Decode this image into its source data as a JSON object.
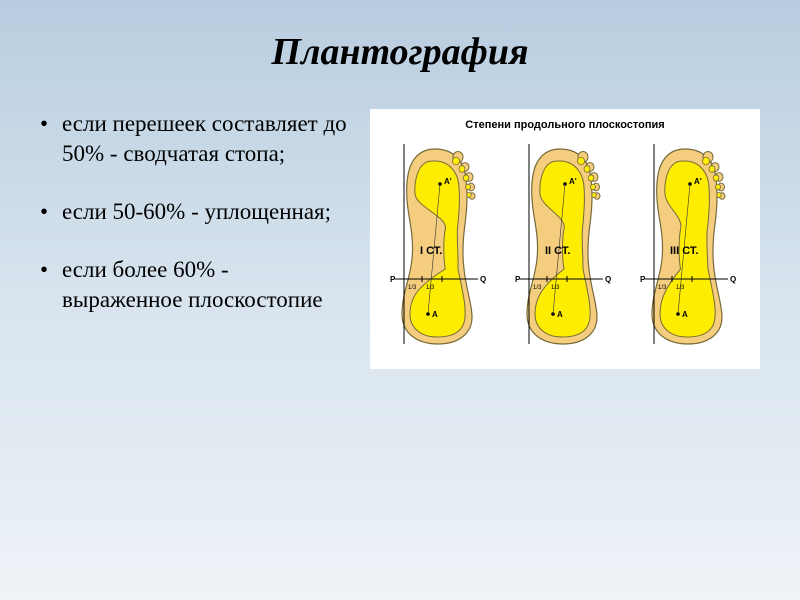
{
  "title": "Плантография",
  "bullets": [
    "если перешеек составляет до 50% - сводчатая стопа;",
    "если 50-60% - уплощенная;",
    "если более 60% - выраженное плоскостопие"
  ],
  "diagram": {
    "title": "Степени продольного плоскостопия",
    "outer_color": "#f5cd7e",
    "inner_color": "#feed00",
    "stroke_color": "#766a3a",
    "line_color": "#000000",
    "guide_color": "#333333",
    "feet": [
      {
        "label": "I СТ.",
        "point_p": "P",
        "point_q": "Q",
        "point_a": "A",
        "point_a_top": "A'",
        "inner_waist": 0.35,
        "ticks": [
          "1/3",
          "1/3"
        ]
      },
      {
        "label": "II СТ.",
        "point_p": "P",
        "point_q": "Q",
        "point_a": "A",
        "point_a_top": "A'",
        "inner_waist": 0.5,
        "ticks": [
          "1/3",
          "1/3"
        ]
      },
      {
        "label": "III СТ.",
        "point_p": "P",
        "point_q": "Q",
        "point_a": "A",
        "point_a_top": "A'",
        "inner_waist": 0.7,
        "ticks": [
          "1/3",
          "1/3"
        ]
      }
    ]
  },
  "colors": {
    "background_top": "#b8cde0",
    "background_bottom": "#eef3f7",
    "text": "#000000"
  }
}
